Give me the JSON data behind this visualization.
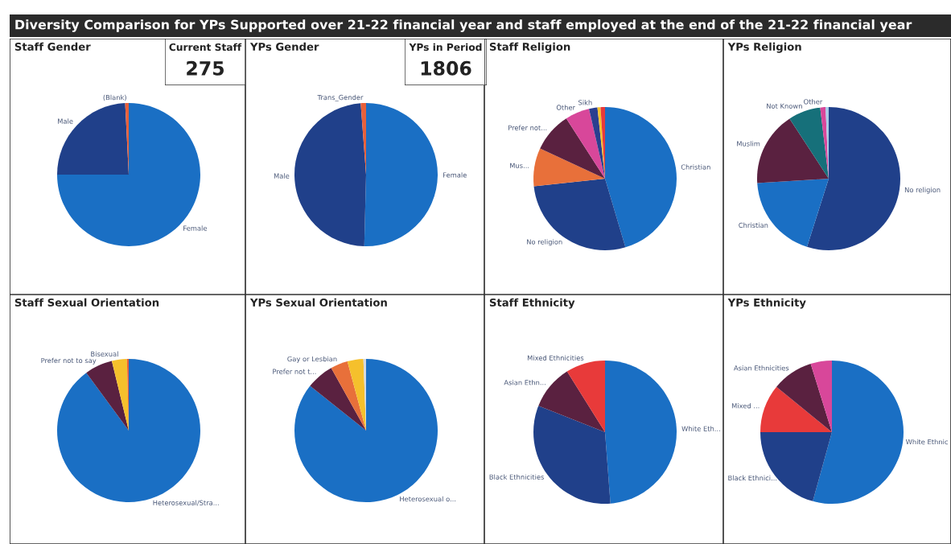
{
  "chart_data": [
    {
      "type": "other",
      "title": "Diversity Comparison for YPs Supported over 21-22 financial year and staff employed at the end of the 21-22 financial year"
    },
    {
      "type": "pie",
      "title": "Staff Gender",
      "categories": [
        "Female",
        "Male",
        "(Blank)"
      ],
      "values": [
        75.0,
        24.2,
        0.8
      ],
      "colors": [
        "#1a6fc4",
        "#20408a",
        "#e8603a"
      ]
    },
    {
      "type": "other",
      "title": "Current Staff",
      "annotations": [
        "275"
      ]
    },
    {
      "type": "pie",
      "title": "YPs Gender",
      "categories": [
        "Female",
        "Male",
        "Trans_Gender"
      ],
      "values": [
        50.4,
        48.4,
        1.2
      ],
      "colors": [
        "#1a6fc4",
        "#20408a",
        "#e8603a"
      ]
    },
    {
      "type": "other",
      "title": "YPs in Period",
      "annotations": [
        "1806"
      ]
    },
    {
      "type": "pie",
      "title": "Staff Religion",
      "categories": [
        "Christian",
        "No religion",
        "Mus...",
        "Prefer not...",
        "Other",
        "Sikh",
        null,
        null
      ],
      "values": [
        45.4,
        27.9,
        8.6,
        9.0,
        5.5,
        1.9,
        0.7,
        1.0
      ],
      "colors": [
        "#1a6fc4",
        "#20408a",
        "#e8703a",
        "#5a2140",
        "#d8479a",
        "#2a3f8f",
        "#f5c02c",
        "#e83a3a"
      ]
    },
    {
      "type": "pie",
      "title": "YPs Religion",
      "categories": [
        "No religion",
        "Christian",
        "Muslim",
        "Not Known",
        "Other",
        null
      ],
      "values": [
        54.9,
        19.1,
        16.8,
        7.3,
        1.2,
        0.7
      ],
      "colors": [
        "#20408a",
        "#1a6fc4",
        "#5a2140",
        "#16707a",
        "#d8479a",
        "#a9cbe8"
      ]
    },
    {
      "type": "pie",
      "title": "Staff Sexual Orientation",
      "categories": [
        "Heterosexual/Stra...",
        "Prefer not to say",
        "Bisexual",
        null
      ],
      "values": [
        89.9,
        6.3,
        3.4,
        0.4
      ],
      "colors": [
        "#1a6fc4",
        "#5a2140",
        "#f5c02c",
        "#e8603a"
      ]
    },
    {
      "type": "pie",
      "title": "YPs Sexual Orientation",
      "categories": [
        "Heterosexual o...",
        "Prefer not t...",
        "Gay or Lesbian",
        null,
        null
      ],
      "values": [
        85.7,
        6.2,
        3.9,
        3.6,
        0.6
      ],
      "colors": [
        "#1a6fc4",
        "#5a2140",
        "#e8703a",
        "#f5c02c",
        "#d4d8e0"
      ]
    },
    {
      "type": "pie",
      "title": "Staff Ethnicity",
      "categories": [
        "White Eth...",
        "Black Ethnicities",
        "Asian Ethn...",
        "Mixed Ethnicities"
      ],
      "values": [
        48.8,
        32.2,
        10.1,
        8.9
      ],
      "colors": [
        "#1a6fc4",
        "#20408a",
        "#5a2140",
        "#e83a3a"
      ]
    },
    {
      "type": "pie",
      "title": "YPs Ethnicity",
      "categories": [
        "White Ethnic",
        "Black Ethnici...",
        "Mixed ...",
        "Asian Ethnicities",
        null
      ],
      "values": [
        54.3,
        20.7,
        10.9,
        9.3,
        4.8
      ],
      "colors": [
        "#1a6fc4",
        "#20408a",
        "#e83a3a",
        "#5a2140",
        "#d8479a"
      ]
    }
  ]
}
